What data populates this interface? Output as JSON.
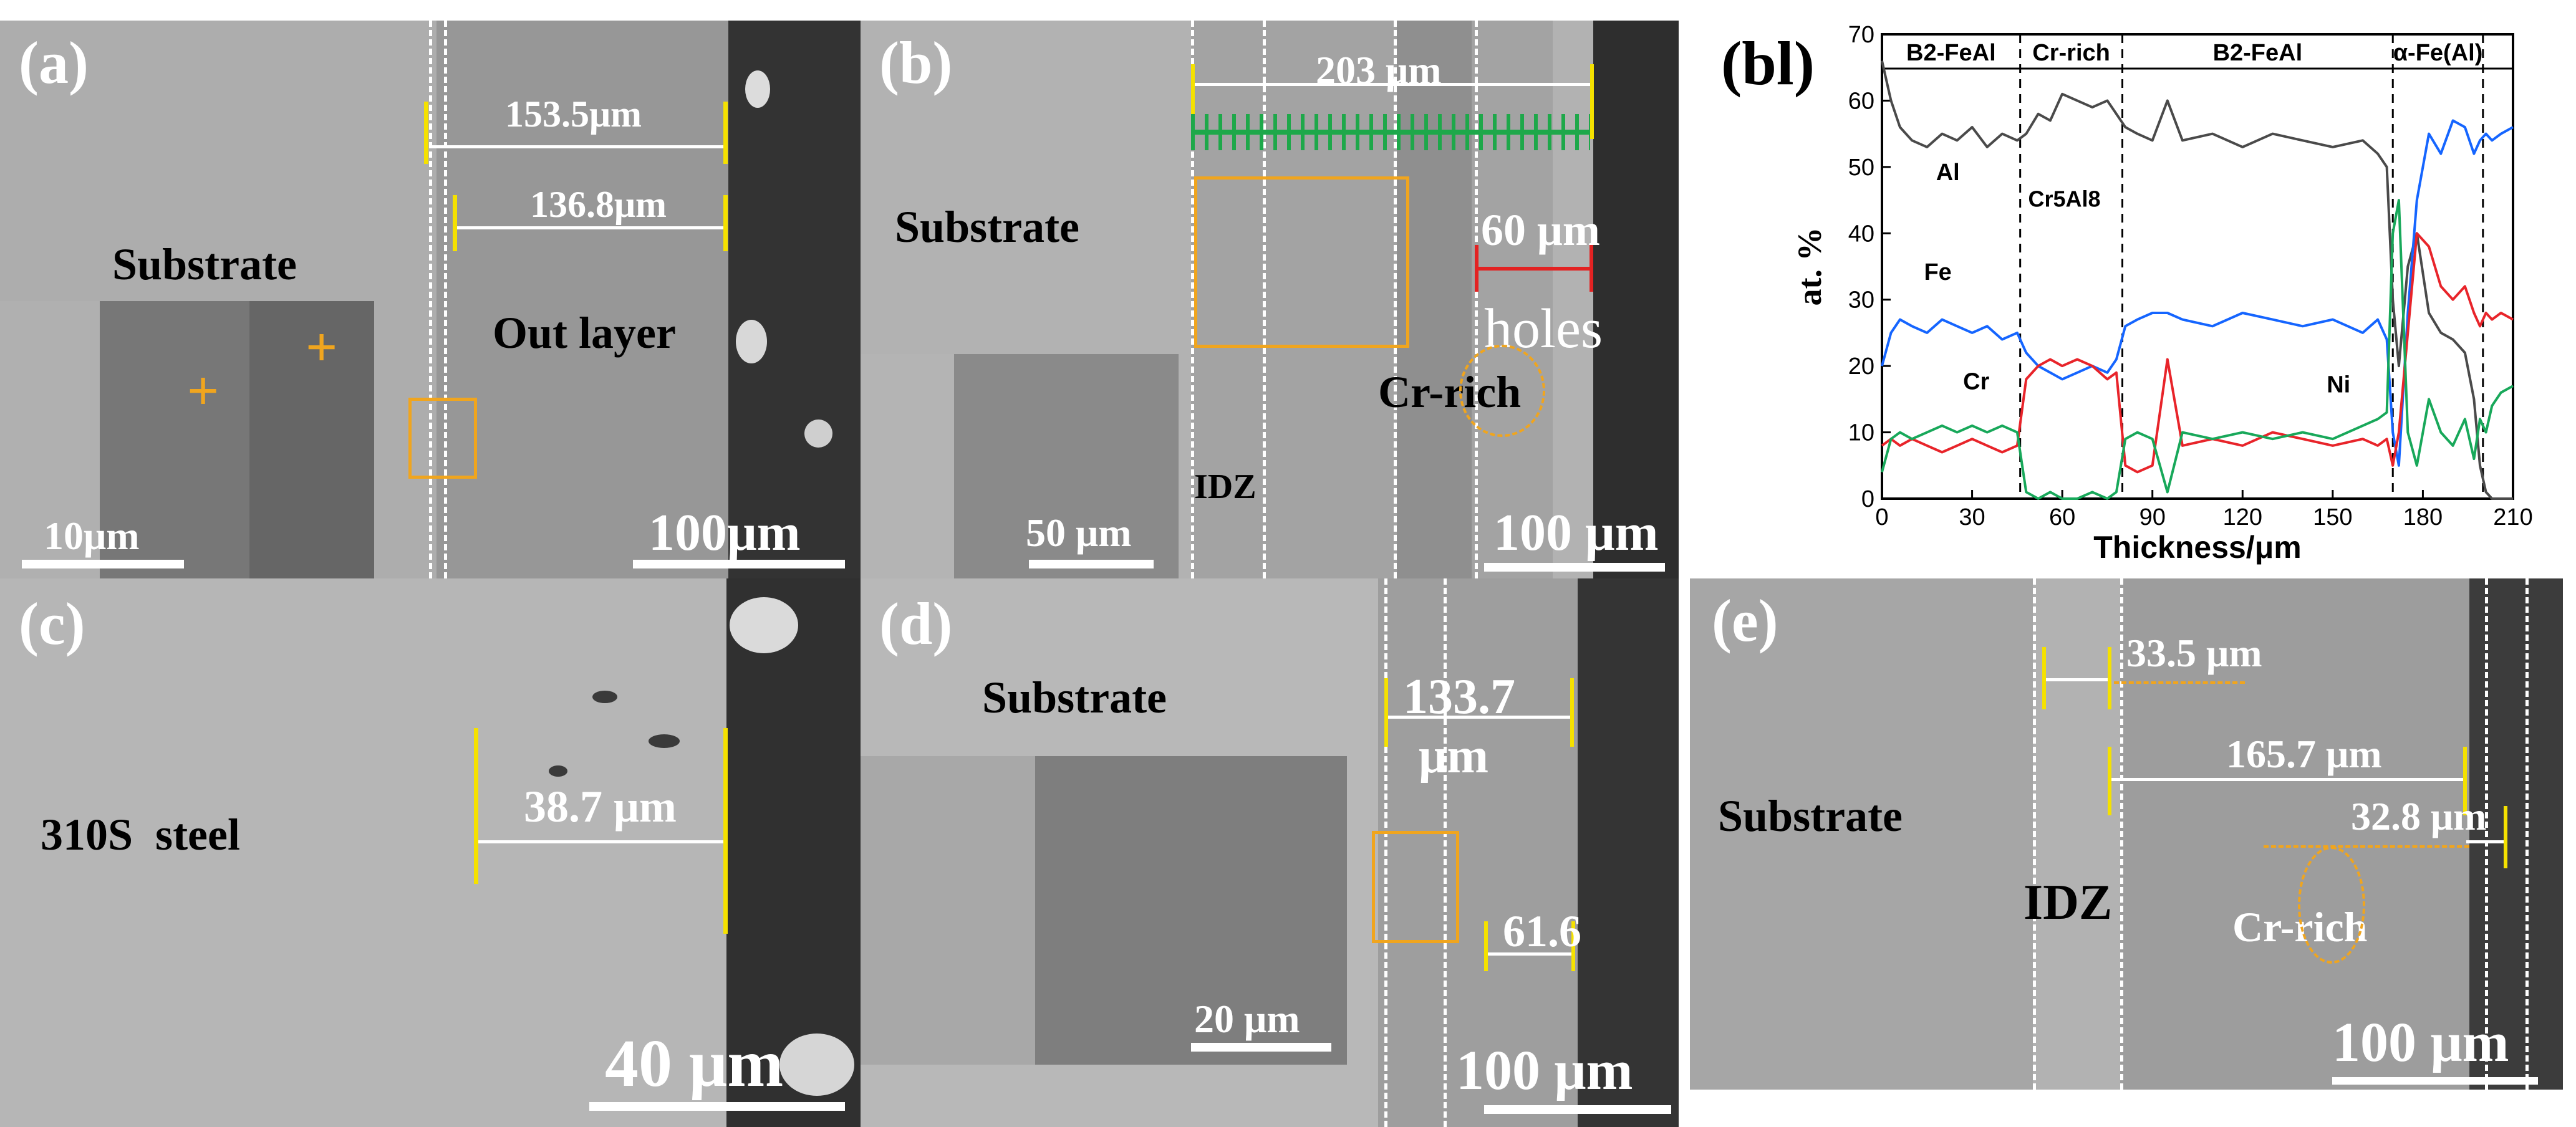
{
  "panels": {
    "a": {
      "label": "(a)",
      "substrate": "Substrate",
      "out_layer": "Out layer",
      "dim1": "153.5μm",
      "dim2": "136.8μm",
      "inset_scale": "10μm",
      "scale": "100μm"
    },
    "b": {
      "label": "(b)",
      "substrate": "Substrate",
      "dim1": "203 μm",
      "dim2": "60 μm",
      "holes": "holes",
      "cr_rich": "Cr-rich",
      "idz": "IDZ",
      "inset_scale": "50 μm",
      "scale": "100 μm"
    },
    "c": {
      "label": "(c)",
      "material": "310S  steel",
      "dim1": "38.7 μm",
      "scale": "40 μm"
    },
    "d": {
      "label": "(d)",
      "substrate": "Substrate",
      "dim1_line1": "133.7",
      "dim1_line2": "μm",
      "dim2": "61.6",
      "inset_scale": "20 μm",
      "scale": "100 μm"
    },
    "e": {
      "label": "(e)",
      "substrate": "Substrate",
      "idz": "IDZ",
      "cr_rich": "Cr-rich",
      "dim1": "33.5 μm",
      "dim2": "165.7 μm",
      "dim3": "32.8 μm",
      "scale": "100 μm"
    }
  },
  "chart_data": {
    "type": "line",
    "panel_label": "(bl)",
    "xlabel": "Thickness/μm",
    "ylabel": "at. %",
    "xlim": [
      0,
      210
    ],
    "ylim": [
      0,
      70
    ],
    "xticks": [
      0,
      30,
      60,
      90,
      120,
      150,
      180,
      210
    ],
    "yticks": [
      0,
      10,
      20,
      30,
      40,
      50,
      60,
      70
    ],
    "zones": [
      {
        "name": "B2-FeAl",
        "from": 0,
        "to": 46
      },
      {
        "name": "Cr-rich",
        "from": 46,
        "to": 80
      },
      {
        "name": "B2-FeAl",
        "from": 80,
        "to": 170
      },
      {
        "name": "α-Fe(Al)",
        "from": 170,
        "to": 200
      }
    ],
    "annotation": "Cr5Al8",
    "series": [
      {
        "name": "Al",
        "color": "#4a4a4a",
        "x": [
          0,
          3,
          6,
          10,
          15,
          20,
          25,
          30,
          35,
          40,
          45,
          48,
          52,
          56,
          60,
          65,
          70,
          75,
          78,
          81,
          85,
          90,
          95,
          100,
          110,
          120,
          130,
          140,
          150,
          160,
          165,
          168,
          170,
          172,
          175,
          178,
          182,
          186,
          190,
          194,
          197,
          199,
          201,
          203,
          206,
          210
        ],
        "y": [
          66,
          60,
          56,
          54,
          53,
          55,
          54,
          56,
          53,
          55,
          54,
          55,
          58,
          57,
          61,
          60,
          59,
          60,
          58,
          56,
          55,
          54,
          60,
          54,
          55,
          53,
          55,
          54,
          53,
          54,
          52,
          50,
          30,
          20,
          35,
          40,
          28,
          25,
          24,
          22,
          15,
          5,
          1,
          0,
          0,
          0
        ]
      },
      {
        "name": "Fe",
        "color": "#1565ff",
        "x": [
          0,
          3,
          6,
          10,
          15,
          20,
          25,
          30,
          35,
          40,
          45,
          48,
          52,
          56,
          60,
          65,
          70,
          75,
          78,
          81,
          85,
          90,
          95,
          100,
          110,
          120,
          130,
          140,
          150,
          160,
          165,
          168,
          170,
          172,
          175,
          178,
          182,
          186,
          190,
          194,
          197,
          199,
          201,
          203,
          206,
          210
        ],
        "y": [
          20,
          25,
          27,
          26,
          25,
          27,
          26,
          25,
          26,
          24,
          25,
          22,
          20,
          19,
          18,
          19,
          20,
          19,
          21,
          26,
          27,
          28,
          28,
          27,
          26,
          28,
          27,
          26,
          27,
          25,
          27,
          24,
          10,
          5,
          28,
          45,
          55,
          52,
          57,
          56,
          52,
          54,
          55,
          54,
          55,
          56
        ]
      },
      {
        "name": "Cr",
        "color": "#e8242a",
        "x": [
          0,
          3,
          6,
          10,
          15,
          20,
          25,
          30,
          35,
          40,
          45,
          48,
          52,
          56,
          60,
          65,
          70,
          75,
          78,
          81,
          85,
          90,
          95,
          100,
          110,
          120,
          130,
          140,
          150,
          160,
          165,
          168,
          170,
          172,
          175,
          178,
          182,
          186,
          190,
          194,
          197,
          199,
          201,
          203,
          206,
          210
        ],
        "y": [
          8,
          9,
          8,
          9,
          8,
          7,
          8,
          9,
          8,
          7,
          8,
          18,
          20,
          21,
          20,
          21,
          20,
          18,
          19,
          5,
          4,
          5,
          21,
          8,
          9,
          8,
          10,
          9,
          8,
          9,
          8,
          9,
          5,
          10,
          25,
          40,
          38,
          32,
          30,
          32,
          28,
          26,
          28,
          27,
          28,
          27
        ]
      },
      {
        "name": "Ni",
        "color": "#18a85a",
        "x": [
          0,
          3,
          6,
          10,
          15,
          20,
          25,
          30,
          35,
          40,
          45,
          48,
          52,
          56,
          60,
          65,
          70,
          75,
          78,
          81,
          85,
          90,
          95,
          100,
          110,
          120,
          130,
          140,
          150,
          160,
          165,
          168,
          170,
          172,
          175,
          178,
          182,
          186,
          190,
          194,
          197,
          199,
          201,
          203,
          206,
          210
        ],
        "y": [
          4,
          9,
          10,
          9,
          10,
          11,
          10,
          11,
          10,
          11,
          10,
          1,
          0,
          1,
          0,
          0,
          1,
          0,
          1,
          9,
          10,
          9,
          1,
          10,
          9,
          10,
          9,
          10,
          9,
          11,
          12,
          13,
          40,
          45,
          10,
          5,
          15,
          10,
          8,
          12,
          6,
          12,
          10,
          14,
          16,
          17
        ]
      }
    ]
  }
}
